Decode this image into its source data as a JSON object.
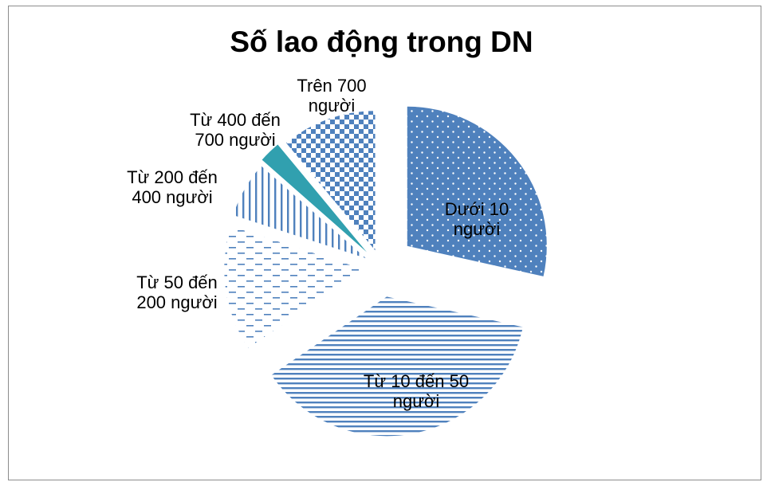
{
  "chart_data": {
    "type": "pie",
    "title": "Số lao động trong DN",
    "exploded": true,
    "start_angle_deg": 0,
    "direction": "clockwise",
    "categories": [
      "Dưới 10 người",
      "Từ 10 đến 50 người",
      "Từ 50 đến 200 người",
      "Từ 200 đến 400 người",
      "Từ 400 đến 700 người",
      "Trên 700 người"
    ],
    "values": [
      28.5,
      37.0,
      14.5,
      6.5,
      2.5,
      11.0
    ],
    "labels": [
      [
        "Dưới 10",
        "người"
      ],
      [
        "Từ 10 đến 50",
        "người"
      ],
      [
        "Từ 50 đến",
        "200 người"
      ],
      [
        "Từ 200 đến",
        "400 người"
      ],
      [
        "Từ 400 đến",
        "700 người"
      ],
      [
        "Trên 700",
        "người"
      ]
    ],
    "label_positions": [
      "inside",
      "inside",
      "outside",
      "outside",
      "outside",
      "outside"
    ],
    "slice_styles": [
      {
        "pattern": "dots-white",
        "color": "#4F81BD"
      },
      {
        "pattern": "horizontal-lines",
        "color": "#4F81BD"
      },
      {
        "pattern": "horizontal-dashes",
        "color": "#4F81BD"
      },
      {
        "pattern": "vertical-lines",
        "color": "#4F81BD"
      },
      {
        "pattern": "solid",
        "color": "#31A0AF"
      },
      {
        "pattern": "checker",
        "color": "#4F81BD"
      }
    ],
    "legend": "none"
  }
}
